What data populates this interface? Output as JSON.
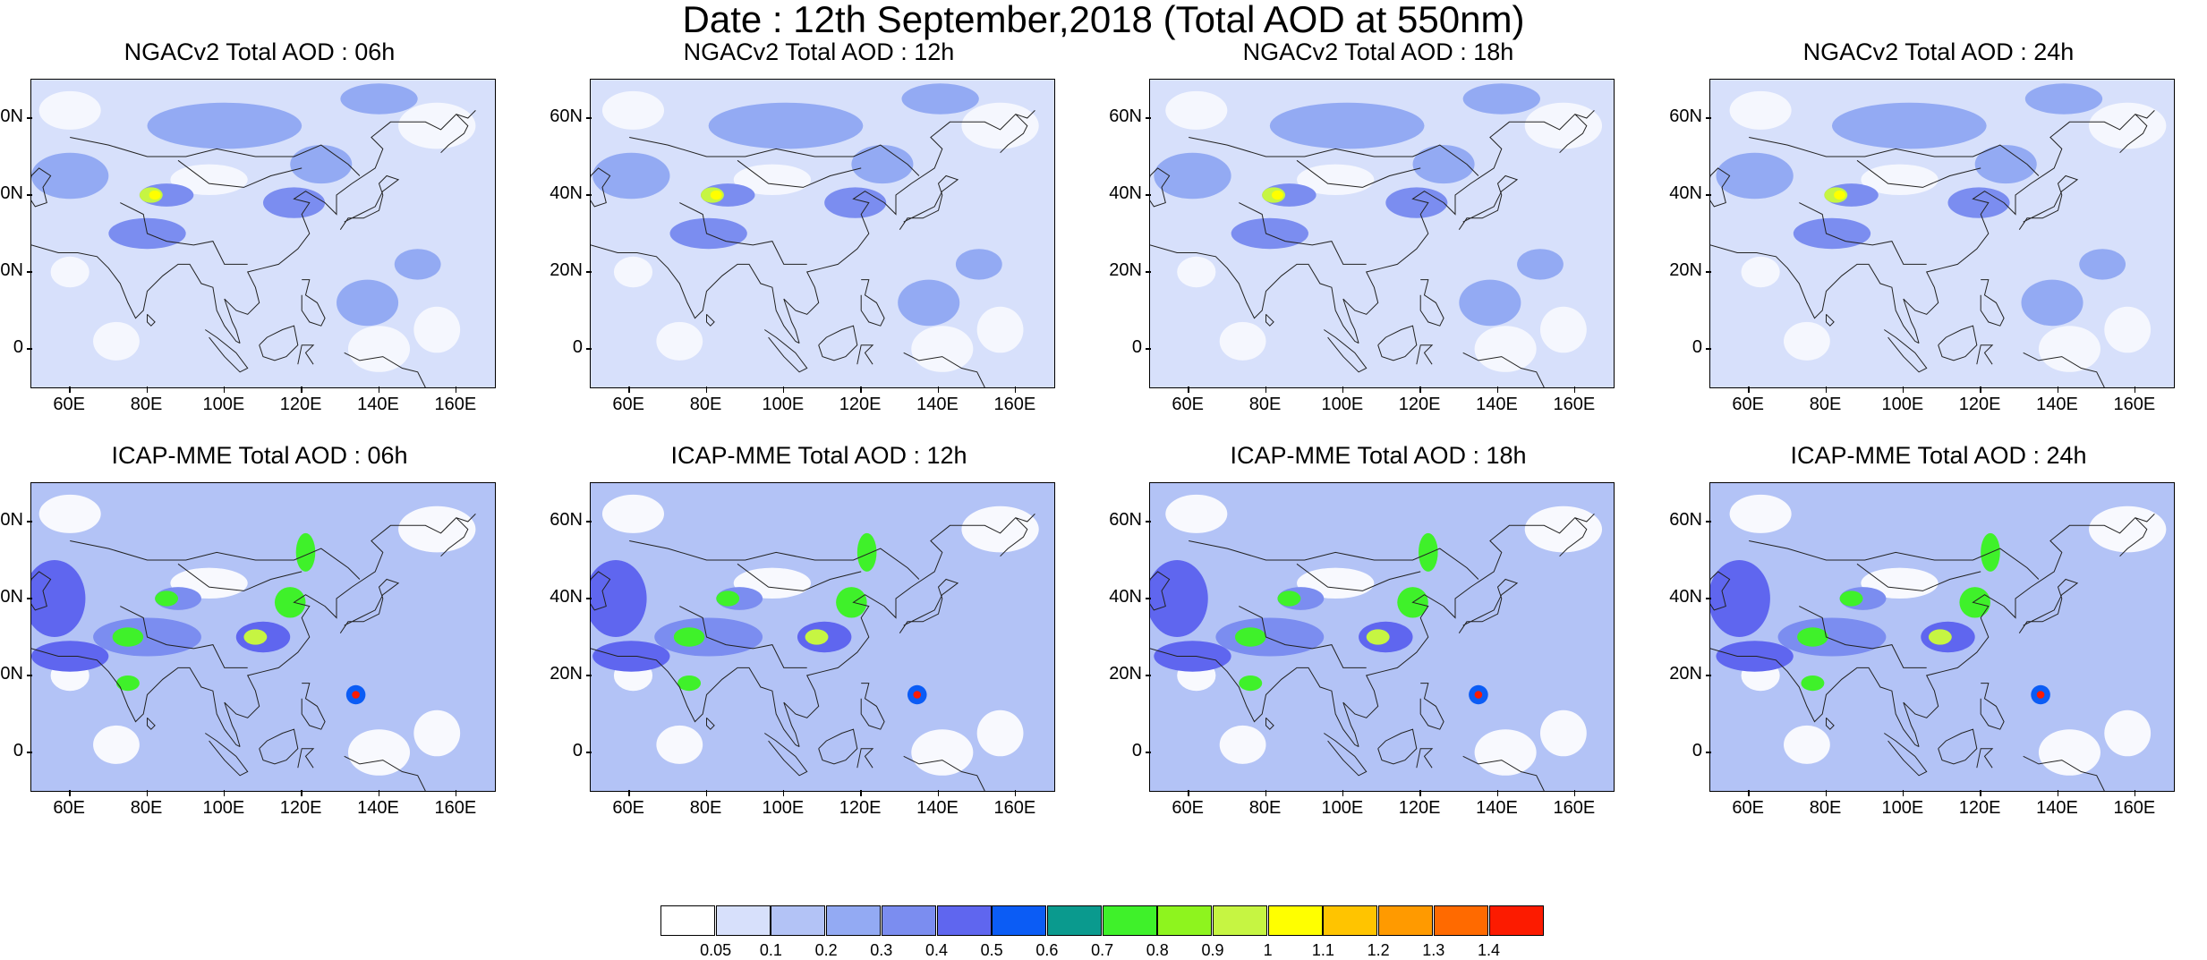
{
  "title": "Date : 12th September,2018 (Total AOD at 550nm)",
  "panels": [
    {
      "title": "NGACv2 Total AOD : 06h",
      "model": "ngac"
    },
    {
      "title": "NGACv2 Total AOD : 12h",
      "model": "ngac"
    },
    {
      "title": "NGACv2 Total AOD : 18h",
      "model": "ngac"
    },
    {
      "title": "NGACv2 Total AOD : 24h",
      "model": "ngac"
    },
    {
      "title": "ICAP-MME Total AOD : 06h",
      "model": "icap"
    },
    {
      "title": "ICAP-MME Total AOD : 12h",
      "model": "icap"
    },
    {
      "title": "ICAP-MME Total AOD : 18h",
      "model": "icap"
    },
    {
      "title": "ICAP-MME Total AOD : 24h",
      "model": "icap"
    }
  ],
  "axes": {
    "x_ticks": [
      "60E",
      "80E",
      "100E",
      "120E",
      "140E",
      "160E"
    ],
    "x_tick_values": [
      60,
      80,
      100,
      120,
      140,
      160
    ],
    "x_range": [
      50,
      170
    ],
    "y_ticks": [
      "60N",
      "40N",
      "20N",
      "0"
    ],
    "y_tick_values": [
      60,
      40,
      20,
      0
    ],
    "y_range": [
      -10,
      70
    ]
  },
  "colorbar": {
    "labels": [
      "0.05",
      "0.1",
      "0.2",
      "0.3",
      "0.4",
      "0.5",
      "0.6",
      "0.7",
      "0.8",
      "0.9",
      "1",
      "1.1",
      "1.2",
      "1.3",
      "1.4"
    ],
    "colors": [
      "#ffffff",
      "#d7e0fb",
      "#b3c3f6",
      "#93aaf3",
      "#7b8df0",
      "#5f66ef",
      "#0b5cf5",
      "#0a9a8e",
      "#3ff12a",
      "#8ef41e",
      "#c6f542",
      "#ffff00",
      "#ffc400",
      "#ff9a00",
      "#ff6a00",
      "#fc1b00"
    ]
  }
}
